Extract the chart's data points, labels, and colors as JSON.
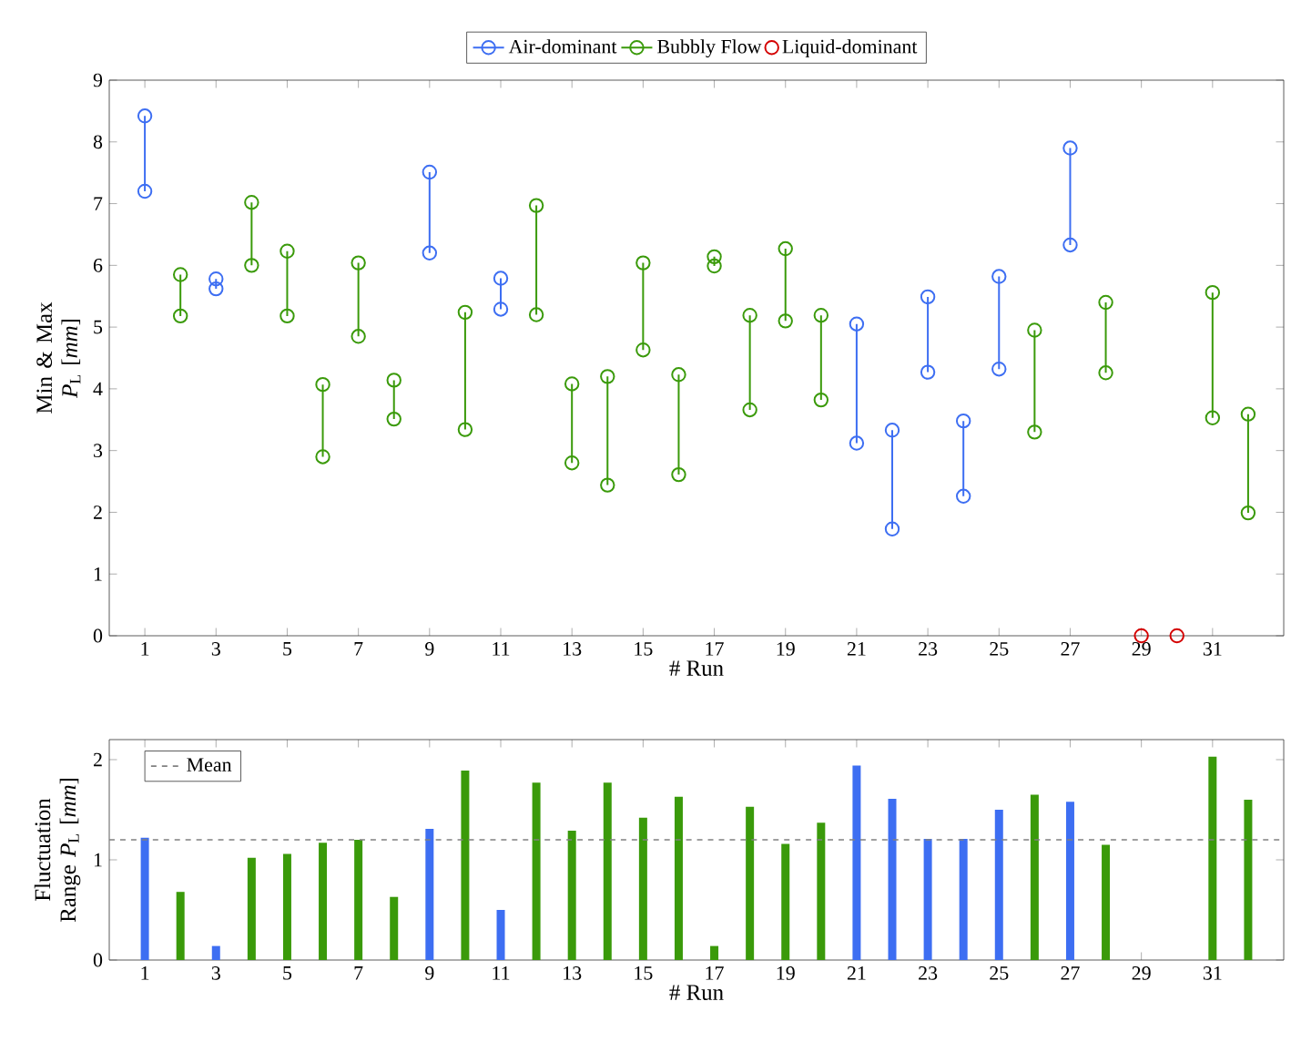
{
  "chart_data": [
    {
      "type": "line",
      "ylabel": "Min & Max *P*$_{L}$ [*mm*]",
      "xlabel": "# Run",
      "xlim": [
        0,
        33
      ],
      "ylim": [
        0,
        9
      ],
      "xticks": [
        1,
        3,
        5,
        7,
        9,
        11,
        13,
        15,
        17,
        19,
        21,
        23,
        25,
        27,
        29,
        31
      ],
      "yticks": [
        0,
        1,
        2,
        3,
        4,
        5,
        6,
        7,
        8,
        9
      ],
      "marker": "circle",
      "line_style": "solid",
      "legend": "top",
      "grid": false,
      "series": [
        {
          "name": "Air-dominant",
          "color": "#3d6ef2",
          "x": [
            1,
            1,
            null,
            3,
            3,
            null,
            9,
            9,
            null,
            11,
            11,
            null,
            21,
            21,
            null,
            22,
            22,
            null,
            23,
            23,
            null,
            24,
            24,
            null,
            25,
            25,
            null,
            27,
            27
          ],
          "values": [
            7.2,
            8.42,
            null,
            5.62,
            5.78,
            null,
            6.2,
            7.51,
            null,
            5.29,
            5.79,
            null,
            3.12,
            5.05,
            null,
            1.73,
            3.33,
            null,
            4.27,
            5.49,
            null,
            2.26,
            3.48,
            null,
            4.32,
            5.82,
            null,
            6.33,
            7.9
          ]
        },
        {
          "name": "Bubbly Flow",
          "color": "#3a9a0a",
          "x": [
            2,
            2,
            null,
            4,
            4,
            null,
            5,
            5,
            null,
            6,
            6,
            null,
            7,
            7,
            null,
            8,
            8,
            null,
            10,
            10,
            null,
            12,
            12,
            null,
            13,
            13,
            null,
            14,
            14,
            null,
            15,
            15,
            null,
            16,
            16,
            null,
            17,
            17,
            null,
            18,
            18,
            null,
            19,
            19,
            null,
            20,
            20,
            null,
            26,
            26,
            null,
            28,
            28,
            null,
            31,
            31,
            null,
            32,
            32
          ],
          "values": [
            5.18,
            5.85,
            null,
            6.0,
            7.02,
            null,
            5.18,
            6.23,
            null,
            2.9,
            4.07,
            null,
            4.85,
            6.04,
            null,
            3.51,
            4.14,
            null,
            3.34,
            5.24,
            null,
            5.2,
            6.97,
            null,
            2.8,
            4.08,
            null,
            2.44,
            4.2,
            null,
            4.63,
            6.04,
            null,
            2.61,
            4.23,
            null,
            5.99,
            6.14,
            null,
            3.66,
            5.19,
            null,
            5.1,
            6.27,
            null,
            3.82,
            5.19,
            null,
            3.3,
            4.95,
            null,
            4.26,
            5.4,
            null,
            3.53,
            5.56,
            null,
            1.99,
            3.59
          ]
        },
        {
          "name": "Liquid-dominant",
          "type": "scatter",
          "color": "#d40000",
          "x": [
            29,
            30
          ],
          "values": [
            0,
            0
          ]
        }
      ]
    },
    {
      "type": "bar",
      "ylabel": "Fluctuation Range *P*$_{L}$ [*mm*]",
      "xlabel": "# Run",
      "xlim": [
        0,
        33
      ],
      "ylim": [
        0,
        2.2
      ],
      "xticks": [
        1,
        3,
        5,
        7,
        9,
        11,
        13,
        15,
        17,
        19,
        21,
        23,
        25,
        27,
        29,
        31
      ],
      "yticks": [
        0,
        1,
        2
      ],
      "legend": "top left",
      "grid": false,
      "x": [
        1,
        2,
        3,
        4,
        5,
        6,
        7,
        8,
        9,
        10,
        11,
        12,
        13,
        14,
        15,
        16,
        17,
        18,
        19,
        20,
        21,
        22,
        23,
        24,
        25,
        26,
        27,
        28,
        29,
        30,
        31,
        32
      ],
      "values": [
        1.22,
        0.68,
        0.14,
        1.02,
        1.06,
        1.17,
        1.2,
        0.63,
        1.31,
        1.89,
        0.5,
        1.77,
        1.29,
        1.77,
        1.42,
        1.63,
        0.14,
        1.53,
        1.16,
        1.37,
        1.94,
        1.61,
        1.21,
        1.21,
        1.5,
        1.65,
        1.58,
        1.15,
        0,
        0,
        2.03,
        1.6
      ],
      "colors": [
        "#3d6ef2",
        "#3a9a0a",
        "#3d6ef2",
        "#3a9a0a",
        "#3a9a0a",
        "#3a9a0a",
        "#3a9a0a",
        "#3a9a0a",
        "#3d6ef2",
        "#3a9a0a",
        "#3d6ef2",
        "#3a9a0a",
        "#3a9a0a",
        "#3a9a0a",
        "#3a9a0a",
        "#3a9a0a",
        "#3a9a0a",
        "#3a9a0a",
        "#3a9a0a",
        "#3a9a0a",
        "#3d6ef2",
        "#3d6ef2",
        "#3d6ef2",
        "#3d6ef2",
        "#3d6ef2",
        "#3a9a0a",
        "#3d6ef2",
        "#3a9a0a",
        "#d40000",
        "#d40000",
        "#3a9a0a",
        "#3a9a0a"
      ],
      "ref_lines": [
        {
          "axis": "y",
          "value": 1.2,
          "label": "Mean",
          "color": "#808080",
          "line_style": "dashed"
        }
      ]
    }
  ]
}
